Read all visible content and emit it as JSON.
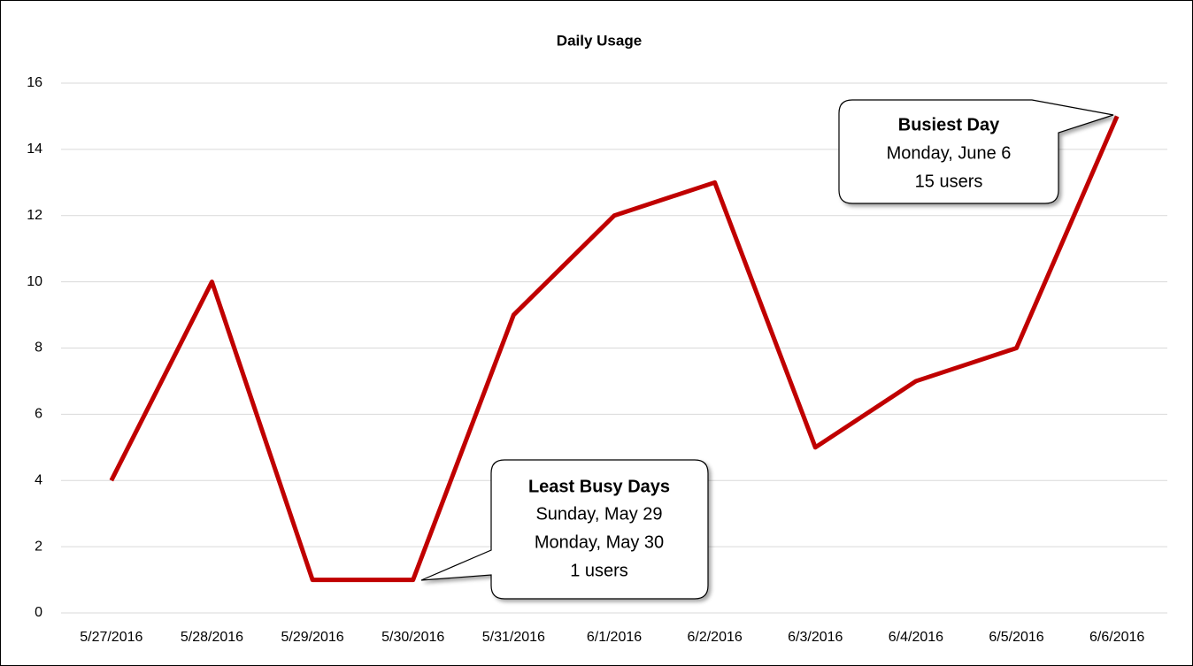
{
  "chart_data": {
    "type": "line",
    "title": "Daily Usage",
    "categories": [
      "5/27/2016",
      "5/28/2016",
      "5/29/2016",
      "5/30/2016",
      "5/31/2016",
      "6/1/2016",
      "6/2/2016",
      "6/3/2016",
      "6/4/2016",
      "6/5/2016",
      "6/6/2016"
    ],
    "values": [
      4,
      10,
      1,
      1,
      9,
      12,
      13,
      5,
      7,
      8,
      15
    ],
    "color": "#c00000",
    "ylim": [
      0,
      16
    ],
    "yticks": [
      0,
      2,
      4,
      6,
      8,
      10,
      12,
      14,
      16
    ],
    "grid": true,
    "annotations": [
      {
        "title": "Least Busy Days",
        "lines": [
          "Sunday, May 29",
          "Monday, May 30",
          "1 users"
        ]
      },
      {
        "title": "Busiest Day",
        "lines": [
          "Monday, June 6",
          "15 users"
        ]
      }
    ]
  }
}
